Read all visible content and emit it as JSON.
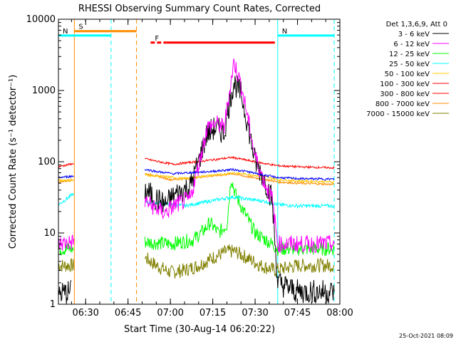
{
  "chart_data": {
    "type": "line",
    "title": "RHESSI Observing Summary Count Rates, Corrected",
    "xlabel": "Start Time (30-Aug-14 06:20:22)",
    "ylabel": "Corrected Count Rate (s⁻¹ detector⁻¹)",
    "yscale": "log",
    "ylim": [
      1,
      10000
    ],
    "xlim": [
      "06:20:22",
      "08:00:00"
    ],
    "yticks": [
      "1",
      "10",
      "100",
      "1000",
      "10000"
    ],
    "xticks": [
      "06:30",
      "06:45",
      "07:00",
      "07:15",
      "07:30",
      "07:45",
      "08:00"
    ],
    "legend_header": "Det 1,3,6,9, Att 0",
    "timestamp": "25-Oct-2021 08:09",
    "legend_position": "right",
    "series": [
      {
        "name": "3 - 6 keV",
        "color": "#000000",
        "x": [
          "06:20:22",
          "06:25:00",
          "06:51:00",
          "06:55:00",
          "06:58:00",
          "07:02:00",
          "07:07:00",
          "07:10:00",
          "07:13:00",
          "07:16:00",
          "07:19:00",
          "07:21:00",
          "07:22:30",
          "07:25:00",
          "07:27:00",
          "07:30:00",
          "07:33:00",
          "07:36:00",
          "07:38:00",
          "07:45:00",
          "07:58:00"
        ],
        "y": [
          1.4,
          1.5,
          40,
          30,
          25,
          35,
          45,
          100,
          250,
          300,
          250,
          700,
          1300,
          900,
          400,
          100,
          60,
          30,
          2,
          1.5,
          1.5
        ]
      },
      {
        "name": "6 - 12 keV",
        "color": "#ff00ff",
        "x": [
          "06:20:22",
          "06:26:00",
          "06:51:00",
          "06:55:00",
          "06:58:00",
          "07:02:00",
          "07:07:00",
          "07:10:00",
          "07:13:00",
          "07:16:00",
          "07:19:00",
          "07:21:00",
          "07:22:30",
          "07:25:00",
          "07:27:00",
          "07:30:00",
          "07:33:00",
          "07:36:00",
          "07:38:00",
          "07:45:00",
          "07:58:00"
        ],
        "y": [
          7,
          7.5,
          28,
          22,
          19,
          25,
          30,
          90,
          300,
          350,
          300,
          1000,
          2500,
          1200,
          500,
          120,
          55,
          30,
          7,
          7,
          7
        ]
      },
      {
        "name": "12 - 25 keV",
        "color": "#00ff00",
        "x": [
          "06:20:22",
          "06:26:00",
          "06:51:00",
          "07:00:00",
          "07:08:00",
          "07:12:00",
          "07:14:00",
          "07:17:00",
          "07:20:00",
          "07:21:30",
          "07:23:00",
          "07:26:00",
          "07:30:00",
          "07:36:00",
          "07:38:00",
          "07:45:00",
          "07:58:00"
        ],
        "y": [
          6,
          6,
          7.5,
          7,
          8,
          11,
          14,
          10,
          13,
          60,
          35,
          20,
          10,
          7,
          6,
          6,
          6
        ]
      },
      {
        "name": "25 - 50 keV",
        "color": "#00ffff",
        "x": [
          "06:20:22",
          "06:26:00",
          "06:51:00",
          "06:58:00",
          "07:05:00",
          "07:12:00",
          "07:18:00",
          "07:22:00",
          "07:27:00",
          "07:33:00",
          "07:38:00",
          "07:45:00",
          "07:58:00"
        ],
        "y": [
          25,
          36,
          27,
          26,
          24,
          27,
          30,
          32,
          30,
          28,
          25,
          24,
          24
        ]
      },
      {
        "name": "50 - 100 keV",
        "color": "#ffc800",
        "x": [
          "06:20:22",
          "06:26:00",
          "06:51:00",
          "06:58:00",
          "07:05:00",
          "07:12:00",
          "07:18:00",
          "07:22:00",
          "07:27:00",
          "07:33:00",
          "07:38:00",
          "07:45:00",
          "07:58:00"
        ],
        "y": [
          55,
          55,
          65,
          62,
          58,
          63,
          66,
          70,
          67,
          62,
          56,
          54,
          52
        ]
      },
      {
        "name": "100 - 300 keV",
        "color": "#ff0000",
        "x": [
          "06:20:22",
          "06:26:00",
          "06:51:00",
          "06:56:00",
          "07:01:00",
          "07:06:00",
          "07:12:00",
          "07:18:00",
          "07:22:00",
          "07:27:00",
          "07:33:00",
          "07:38:00",
          "07:45:00",
          "07:58:00"
        ],
        "y": [
          85,
          95,
          110,
          100,
          92,
          97,
          103,
          110,
          115,
          105,
          95,
          88,
          85,
          82
        ]
      },
      {
        "name": "300 - 800 keV",
        "color": "#ff0000",
        "x": [
          "06:20:22",
          "06:26:00",
          "06:51:00",
          "06:56:00",
          "07:01:00",
          "07:06:00",
          "07:12:00",
          "07:18:00",
          "07:22:00",
          "07:27:00",
          "07:33:00",
          "07:38:00",
          "07:45:00",
          "07:58:00"
        ],
        "y": [
          85,
          95,
          110,
          100,
          92,
          97,
          103,
          110,
          115,
          105,
          95,
          88,
          85,
          82
        ]
      },
      {
        "name": "800 - 7000 keV",
        "color": "#ff8c00",
        "x": [
          "06:20:22",
          "06:26:00",
          "06:51:00",
          "06:56:00",
          "07:00:00",
          "07:06:00",
          "07:12:00",
          "07:18:00",
          "07:22:00",
          "07:27:00",
          "07:33:00",
          "07:38:00",
          "07:45:00",
          "07:58:00"
        ],
        "y": [
          52,
          56,
          68,
          62,
          56,
          58,
          62,
          65,
          68,
          62,
          57,
          52,
          50,
          48
        ]
      },
      {
        "name": "7000 - 15000 keV",
        "color": "#808000",
        "x": [
          "06:20:22",
          "06:26:00",
          "06:51:00",
          "06:55:00",
          "07:00:00",
          "07:05:00",
          "07:10:00",
          "07:15:00",
          "07:20:00",
          "07:23:00",
          "07:27:00",
          "07:32:00",
          "07:37:00",
          "07:45:00",
          "07:58:00"
        ],
        "y": [
          3.5,
          3.5,
          4.5,
          3.5,
          2.8,
          3,
          3.5,
          4.5,
          5.5,
          5.5,
          4.5,
          3.5,
          3,
          3.5,
          3.5
        ]
      }
    ],
    "blue_series": {
      "color": "#0000ff",
      "x": [
        "06:20:22",
        "06:26:00",
        "06:51:00",
        "06:56:00",
        "07:01:00",
        "07:06:00",
        "07:12:00",
        "07:18:00",
        "07:22:00",
        "07:27:00",
        "07:33:00",
        "07:38:00",
        "07:45:00",
        "07:58:00"
      ],
      "y": [
        60,
        63,
        78,
        72,
        68,
        70,
        72,
        75,
        78,
        73,
        65,
        60,
        58,
        57
      ]
    },
    "flag_bars": [
      {
        "label": "S",
        "color": "#ff8c00",
        "x0": "06:26:00",
        "x1": "06:48:00",
        "y": 6800
      },
      {
        "label": "N",
        "color": "#00ffff",
        "x0": "06:20:22",
        "x1": "06:39:00",
        "y": 5900
      },
      {
        "label": "N",
        "color": "#00ffff",
        "x0": "07:38:00",
        "x1": "07:58:00",
        "y": 5900
      },
      {
        "label": "F",
        "color": "#ff0000",
        "x0": "06:53:00",
        "x1": "07:37:00",
        "y": 4700
      }
    ],
    "vertical_lines": [
      {
        "x": "06:20:22",
        "color": "#00ffff",
        "style": "solid"
      },
      {
        "x": "06:26:00",
        "color": "#ff8c00",
        "style": "solid"
      },
      {
        "x": "06:39:00",
        "color": "#00ffff",
        "style": "dashed"
      },
      {
        "x": "06:48:00",
        "color": "#ff8c00",
        "style": "dashed"
      },
      {
        "x": "07:38:00",
        "color": "#00ffff",
        "style": "solid"
      },
      {
        "x": "07:58:00",
        "color": "#00ffff",
        "style": "dashed"
      }
    ]
  }
}
